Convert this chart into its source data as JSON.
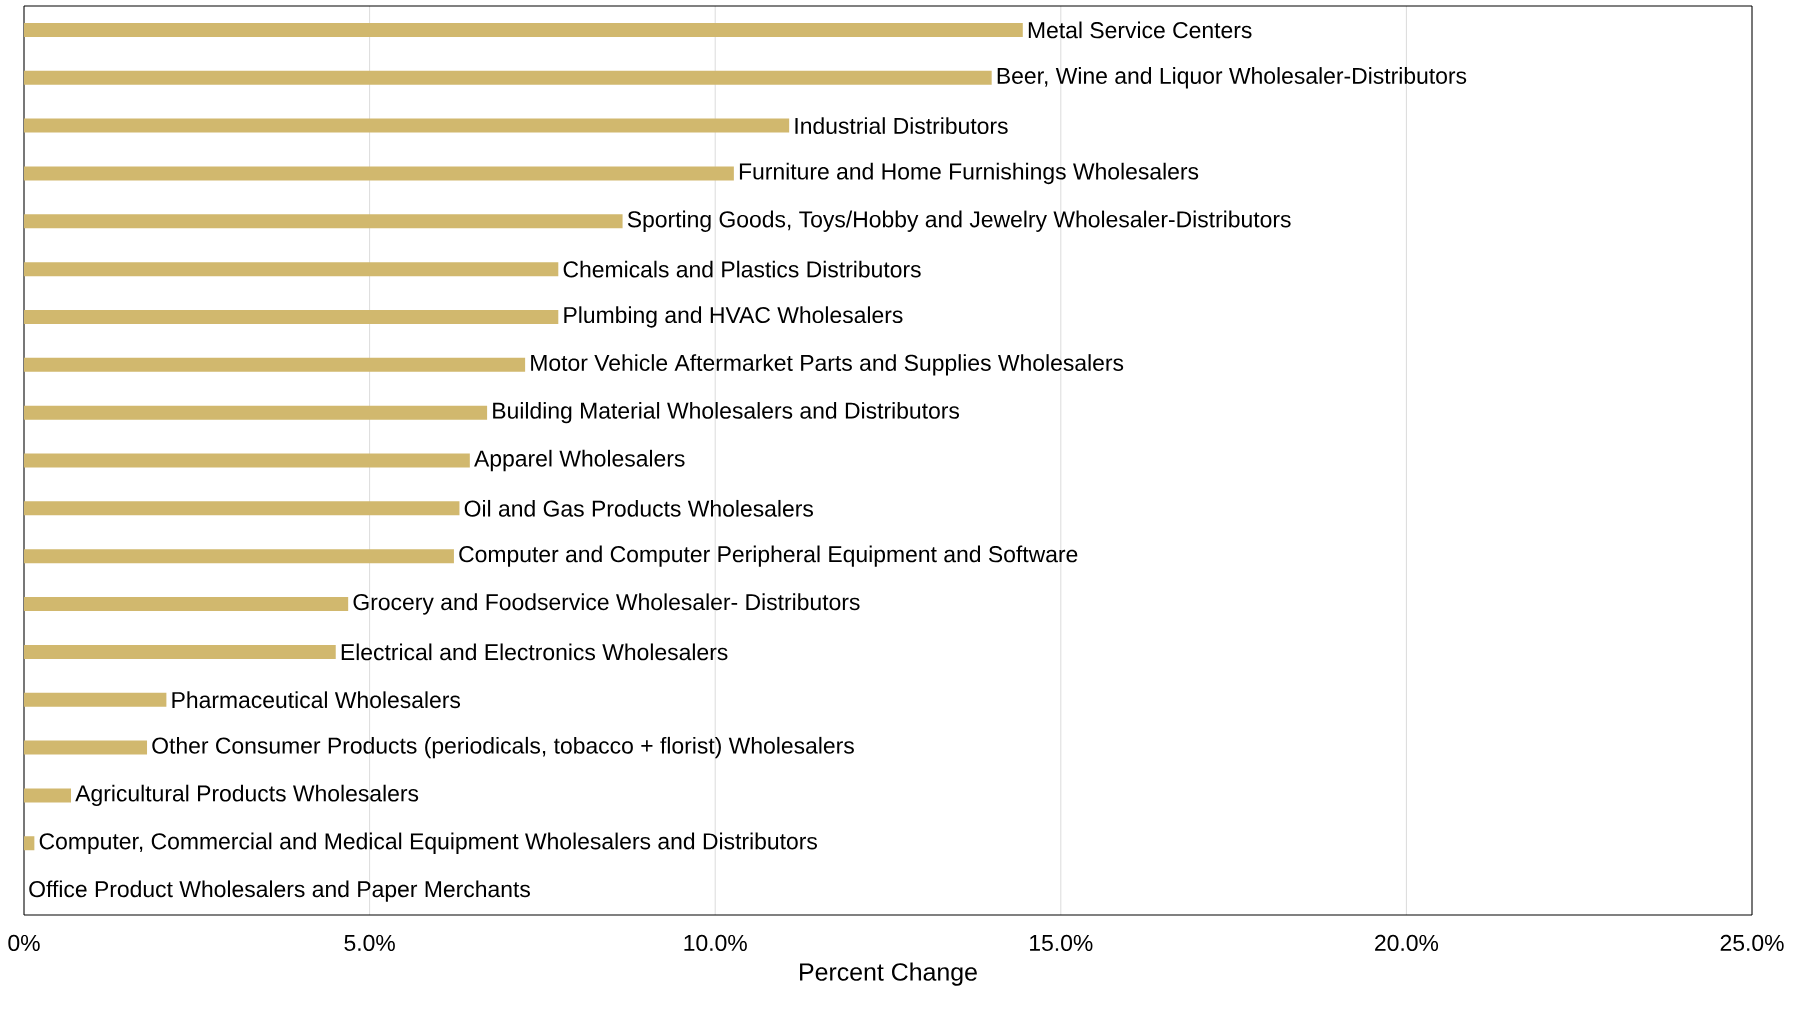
{
  "chart_data": {
    "type": "bar",
    "orientation": "horizontal",
    "xlabel": "Percent Change",
    "categories": [
      "Metal Service Centers",
      "Beer, Wine and Liquor Wholesaler-Distributors",
      "Industrial Distributors",
      "Furniture and Home Furnishings Wholesalers",
      "Sporting Goods, Toys/Hobby and Jewelry Wholesaler-Distributors",
      "Chemicals and Plastics Distributors",
      "Plumbing and HVAC Wholesalers",
      "Motor Vehicle Aftermarket Parts and Supplies Wholesalers",
      "Building Material Wholesalers and Distributors",
      "Apparel Wholesalers",
      "Oil and Gas Products Wholesalers",
      "Computer and Computer Peripheral Equipment and Software",
      "Grocery and Foodservice Wholesaler- Distributors",
      "Electrical and Electronics Wholesalers",
      "Pharmaceutical Wholesalers",
      "Other Consumer Products (periodicals, tobacco + florist) Wholesalers",
      "Agricultural Products Wholesalers",
      "Computer, Commercial and Medical Equipment Wholesalers and Distributors",
      "Office Product Wholesalers and Paper Merchants"
    ],
    "values": [
      14.45,
      14.0,
      11.07,
      10.27,
      8.66,
      7.73,
      7.73,
      7.25,
      6.7,
      6.45,
      6.3,
      6.22,
      4.69,
      4.51,
      2.06,
      1.78,
      0.68,
      0.15,
      0.0
    ],
    "color": "#d1b86e",
    "xlim": [
      0,
      25
    ],
    "xticks": [
      {
        "value": 0,
        "label": "0%"
      },
      {
        "value": 5,
        "label": "5.0%"
      },
      {
        "value": 10,
        "label": "10.0%"
      },
      {
        "value": 15,
        "label": "15.0%"
      },
      {
        "value": 20,
        "label": "20.0%"
      },
      {
        "value": 25,
        "label": "25.0%"
      }
    ],
    "grid": "x"
  }
}
